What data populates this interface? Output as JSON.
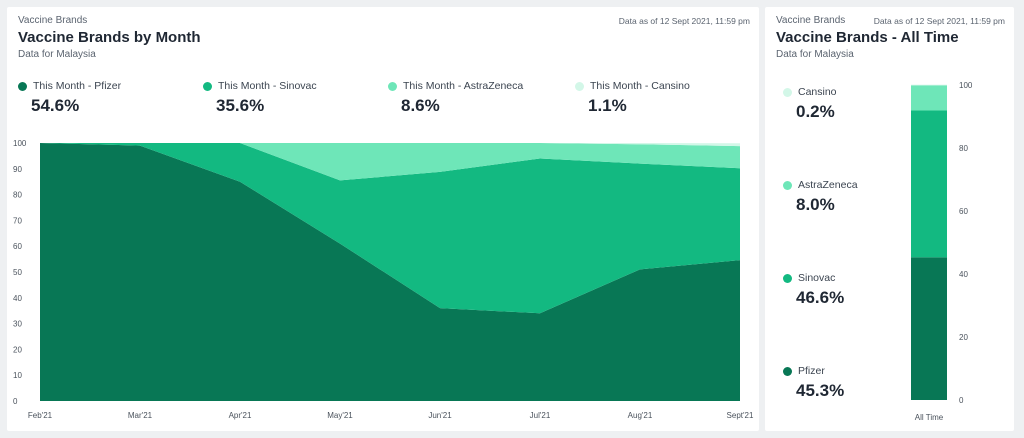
{
  "colors": {
    "pfizer": "#087755",
    "sinovac": "#13b981",
    "astrazeneca": "#6ee6b8",
    "cansino": "#d3f7e8"
  },
  "left": {
    "eyebrow": "Vaccine Brands",
    "as_of": "Data as of 12 Sept 2021, 11:59 pm",
    "title": "Vaccine Brands by Month",
    "subtitle": "Data for Malaysia",
    "stats": [
      {
        "label": "This Month - Pfizer",
        "value": "54.6%",
        "color": "#087755"
      },
      {
        "label": "This Month - Sinovac",
        "value": "35.6%",
        "color": "#13b981"
      },
      {
        "label": "This Month - AstraZeneca",
        "value": "8.6%",
        "color": "#6ee6b8"
      },
      {
        "label": "This Month - Cansino",
        "value": "1.1%",
        "color": "#d3f7e8"
      }
    ]
  },
  "right": {
    "eyebrow": "Vaccine Brands",
    "as_of": "Data as of 12 Sept 2021, 11:59 pm",
    "title": "Vaccine Brands - All Time",
    "subtitle": "Data for Malaysia",
    "stats": [
      {
        "label": "Cansino",
        "value": "0.2%",
        "color": "#d3f7e8"
      },
      {
        "label": "AstraZeneca",
        "value": "8.0%",
        "color": "#6ee6b8"
      },
      {
        "label": "Sinovac",
        "value": "46.6%",
        "color": "#13b981"
      },
      {
        "label": "Pfizer",
        "value": "45.3%",
        "color": "#087755"
      }
    ]
  },
  "chart_data": [
    {
      "type": "area",
      "stacked": true,
      "categories": [
        "Feb'21",
        "Mar'21",
        "Apr'21",
        "May'21",
        "Jun'21",
        "Jul'21",
        "Aug'21",
        "Sept'21"
      ],
      "ylim": [
        0,
        100
      ],
      "yticks": [
        0,
        10,
        20,
        30,
        40,
        50,
        60,
        70,
        80,
        90,
        100
      ],
      "series": [
        {
          "name": "This Month - Pfizer",
          "color": "#087755",
          "values": [
            100,
            99,
            85,
            61,
            36,
            34,
            51,
            54.6
          ]
        },
        {
          "name": "This Month - Sinovac",
          "color": "#13b981",
          "values": [
            0,
            1,
            15,
            24.5,
            52.8,
            60,
            41,
            35.6
          ]
        },
        {
          "name": "This Month - AstraZeneca",
          "color": "#6ee6b8",
          "values": [
            0,
            0,
            0,
            14.5,
            11.2,
            6,
            7.5,
            8.6
          ]
        },
        {
          "name": "This Month - Cansino",
          "color": "#d3f7e8",
          "values": [
            0,
            0,
            0,
            0,
            0,
            0,
            0.5,
            1.1
          ]
        }
      ],
      "grid": false,
      "legend": "top"
    },
    {
      "type": "bar",
      "stacked": true,
      "categories": [
        "All Time"
      ],
      "ylim": [
        0,
        100
      ],
      "yticks": [
        0,
        20,
        40,
        60,
        80,
        100
      ],
      "series": [
        {
          "name": "Pfizer",
          "color": "#087755",
          "values": [
            45.3
          ]
        },
        {
          "name": "Sinovac",
          "color": "#13b981",
          "values": [
            46.6
          ]
        },
        {
          "name": "AstraZeneca",
          "color": "#6ee6b8",
          "values": [
            8.0
          ]
        },
        {
          "name": "Cansino",
          "color": "#d3f7e8",
          "values": [
            0.2
          ]
        }
      ],
      "axis_position": "right",
      "legend": "left"
    }
  ]
}
